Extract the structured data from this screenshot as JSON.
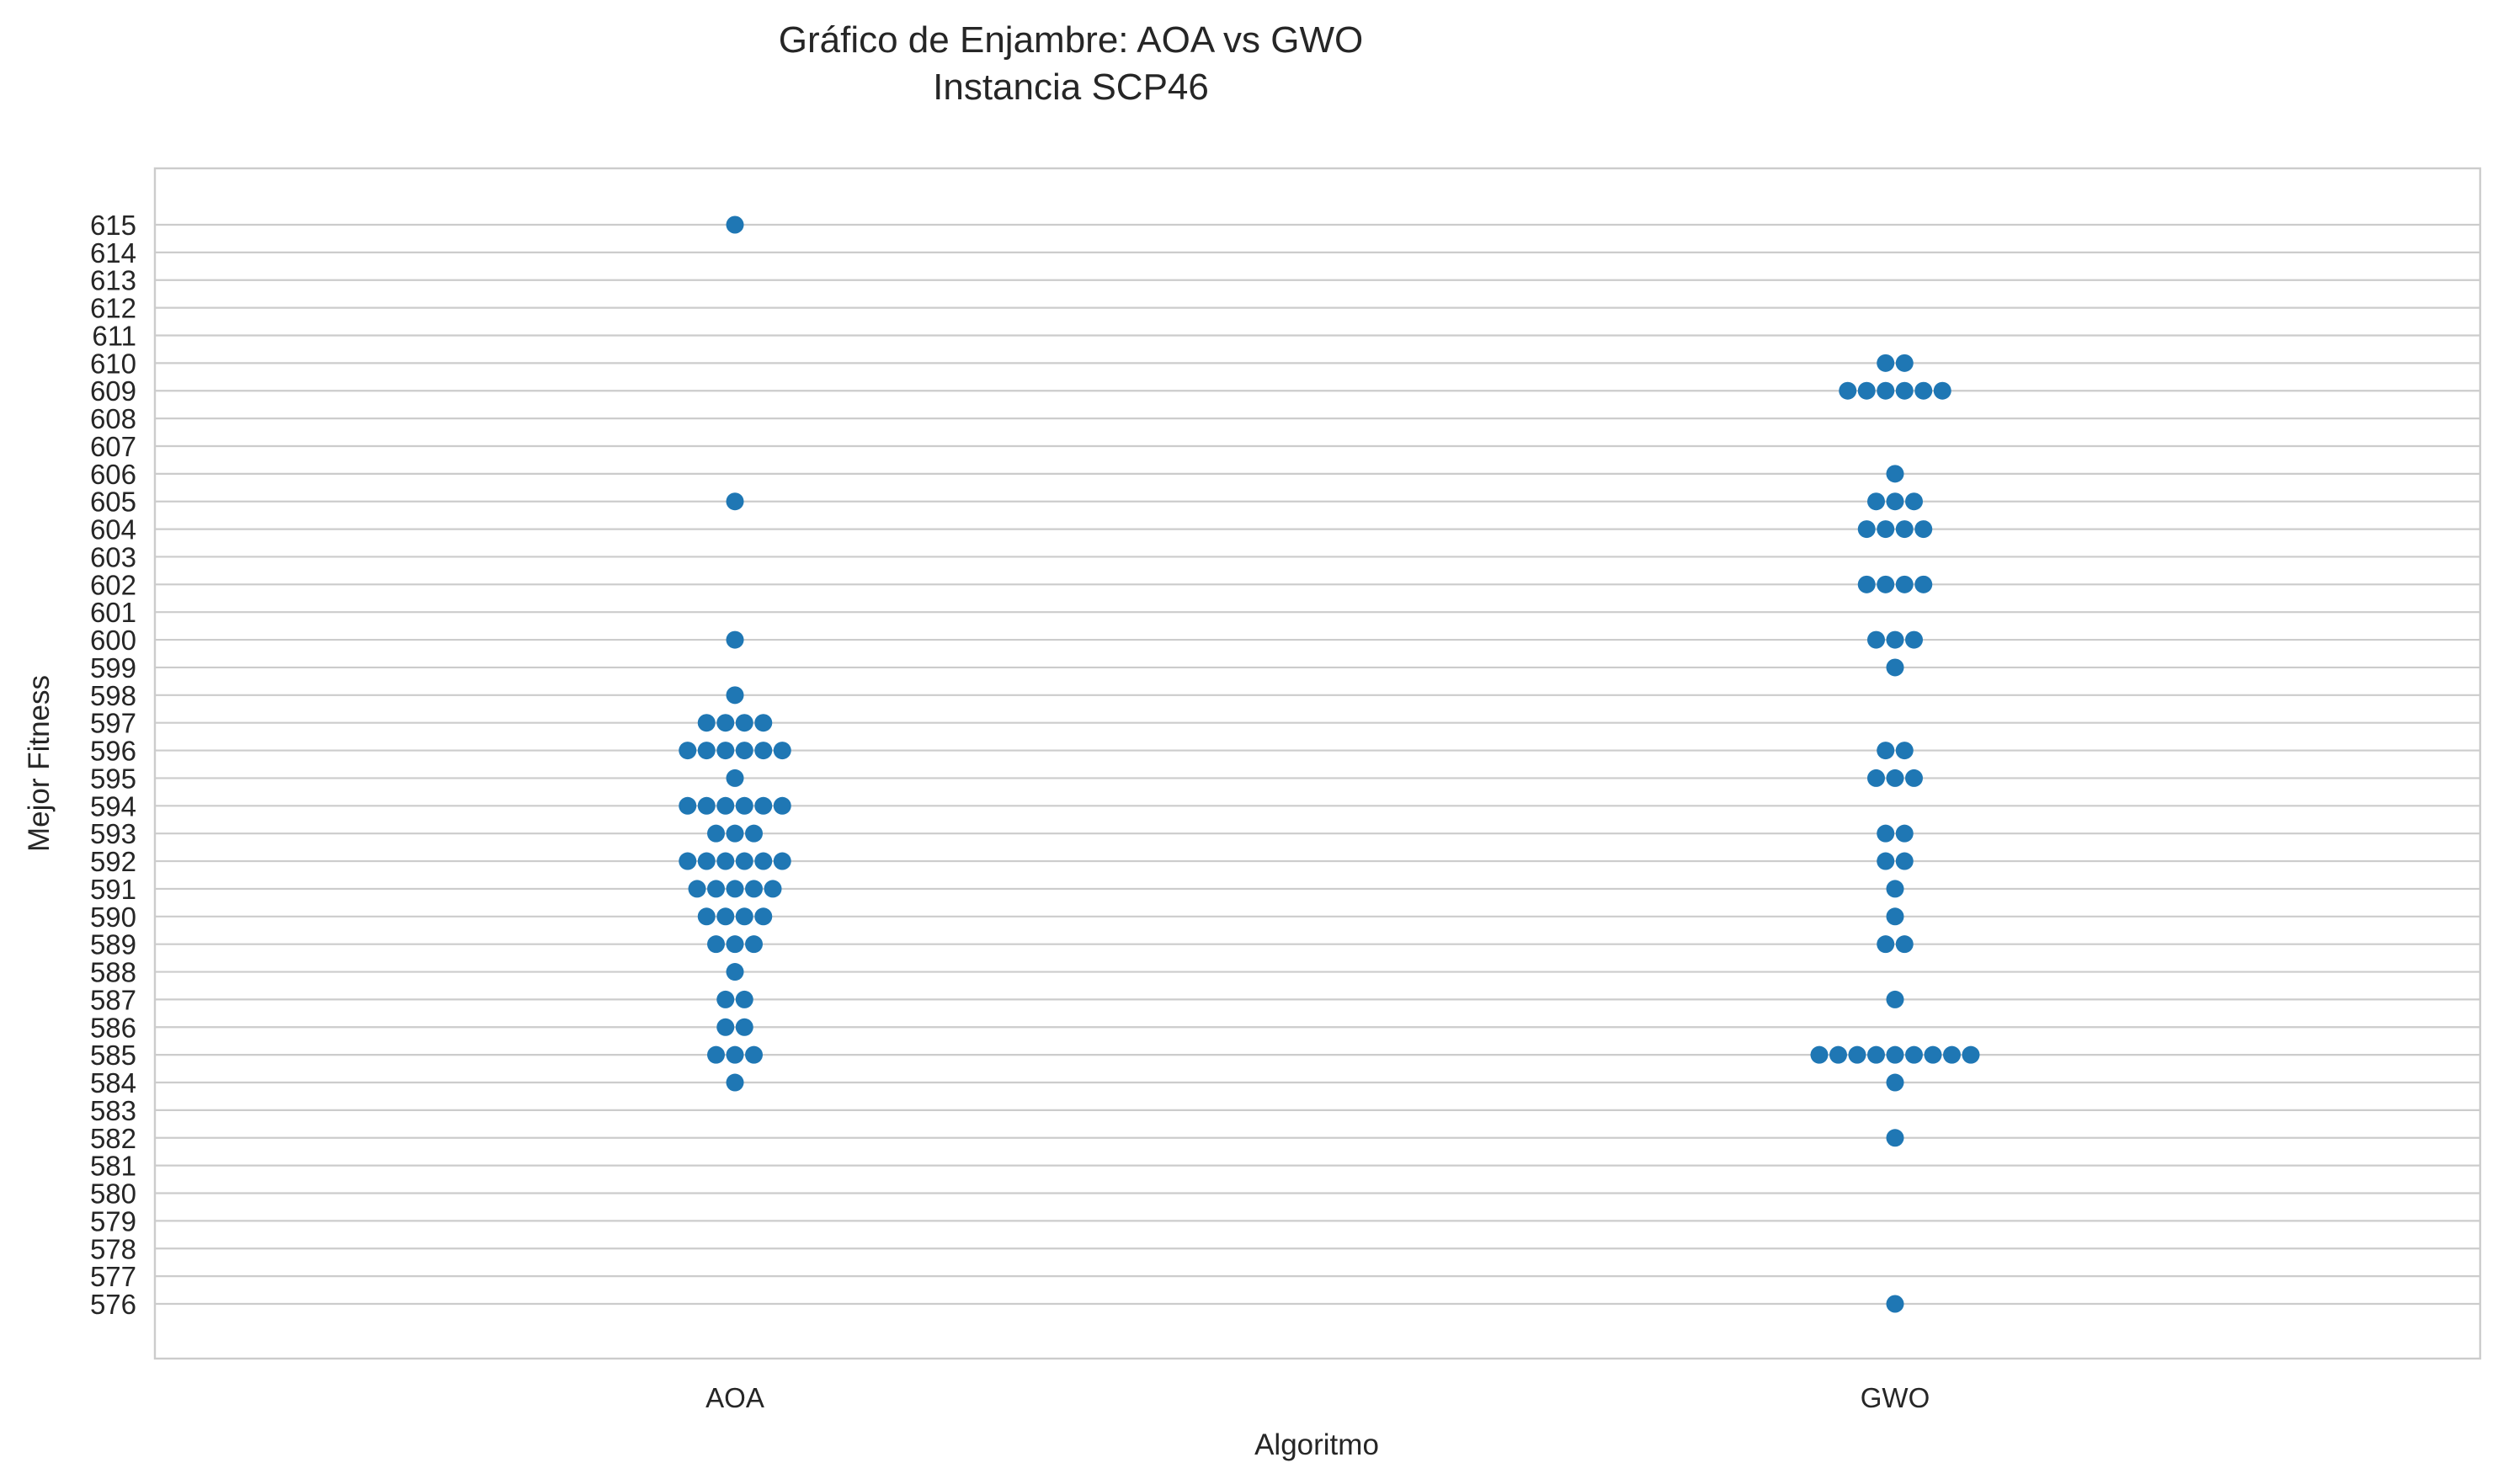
{
  "chart_data": {
    "type": "scatter",
    "subtype": "swarm",
    "title": "Gráfico de Enjambre: AOA vs GWO",
    "subtitle": "Instancia SCP46",
    "xlabel": "Algoritmo",
    "ylabel": "Mejor Fitness",
    "categories": [
      "AOA",
      "GWO"
    ],
    "ylim": [
      574,
      617
    ],
    "yticks": [
      576,
      577,
      578,
      579,
      580,
      581,
      582,
      583,
      584,
      585,
      586,
      587,
      588,
      589,
      590,
      591,
      592,
      593,
      594,
      595,
      596,
      597,
      598,
      599,
      600,
      601,
      602,
      603,
      604,
      605,
      606,
      607,
      608,
      609,
      610,
      611,
      612,
      613,
      614,
      615
    ],
    "grid": "horizontal",
    "point_color": "#1f77b4",
    "series": [
      {
        "category": "AOA",
        "counts": [
          {
            "y": 615,
            "n": 1
          },
          {
            "y": 605,
            "n": 1
          },
          {
            "y": 600,
            "n": 1
          },
          {
            "y": 598,
            "n": 1
          },
          {
            "y": 597,
            "n": 4
          },
          {
            "y": 596,
            "n": 6
          },
          {
            "y": 595,
            "n": 1
          },
          {
            "y": 594,
            "n": 6
          },
          {
            "y": 593,
            "n": 3
          },
          {
            "y": 592,
            "n": 6
          },
          {
            "y": 591,
            "n": 5
          },
          {
            "y": 590,
            "n": 4
          },
          {
            "y": 589,
            "n": 3
          },
          {
            "y": 588,
            "n": 1
          },
          {
            "y": 587,
            "n": 2
          },
          {
            "y": 586,
            "n": 2
          },
          {
            "y": 585,
            "n": 3
          },
          {
            "y": 584,
            "n": 1
          }
        ]
      },
      {
        "category": "GWO",
        "counts": [
          {
            "y": 610,
            "n": 2
          },
          {
            "y": 609,
            "n": 6
          },
          {
            "y": 606,
            "n": 1
          },
          {
            "y": 605,
            "n": 3
          },
          {
            "y": 604,
            "n": 4
          },
          {
            "y": 602,
            "n": 4
          },
          {
            "y": 600,
            "n": 3
          },
          {
            "y": 599,
            "n": 1
          },
          {
            "y": 596,
            "n": 2
          },
          {
            "y": 595,
            "n": 3
          },
          {
            "y": 593,
            "n": 2
          },
          {
            "y": 592,
            "n": 2
          },
          {
            "y": 591,
            "n": 1
          },
          {
            "y": 590,
            "n": 1
          },
          {
            "y": 589,
            "n": 2
          },
          {
            "y": 587,
            "n": 1
          },
          {
            "y": 585,
            "n": 9
          },
          {
            "y": 584,
            "n": 1
          },
          {
            "y": 582,
            "n": 1
          },
          {
            "y": 576,
            "n": 1
          }
        ]
      }
    ]
  }
}
